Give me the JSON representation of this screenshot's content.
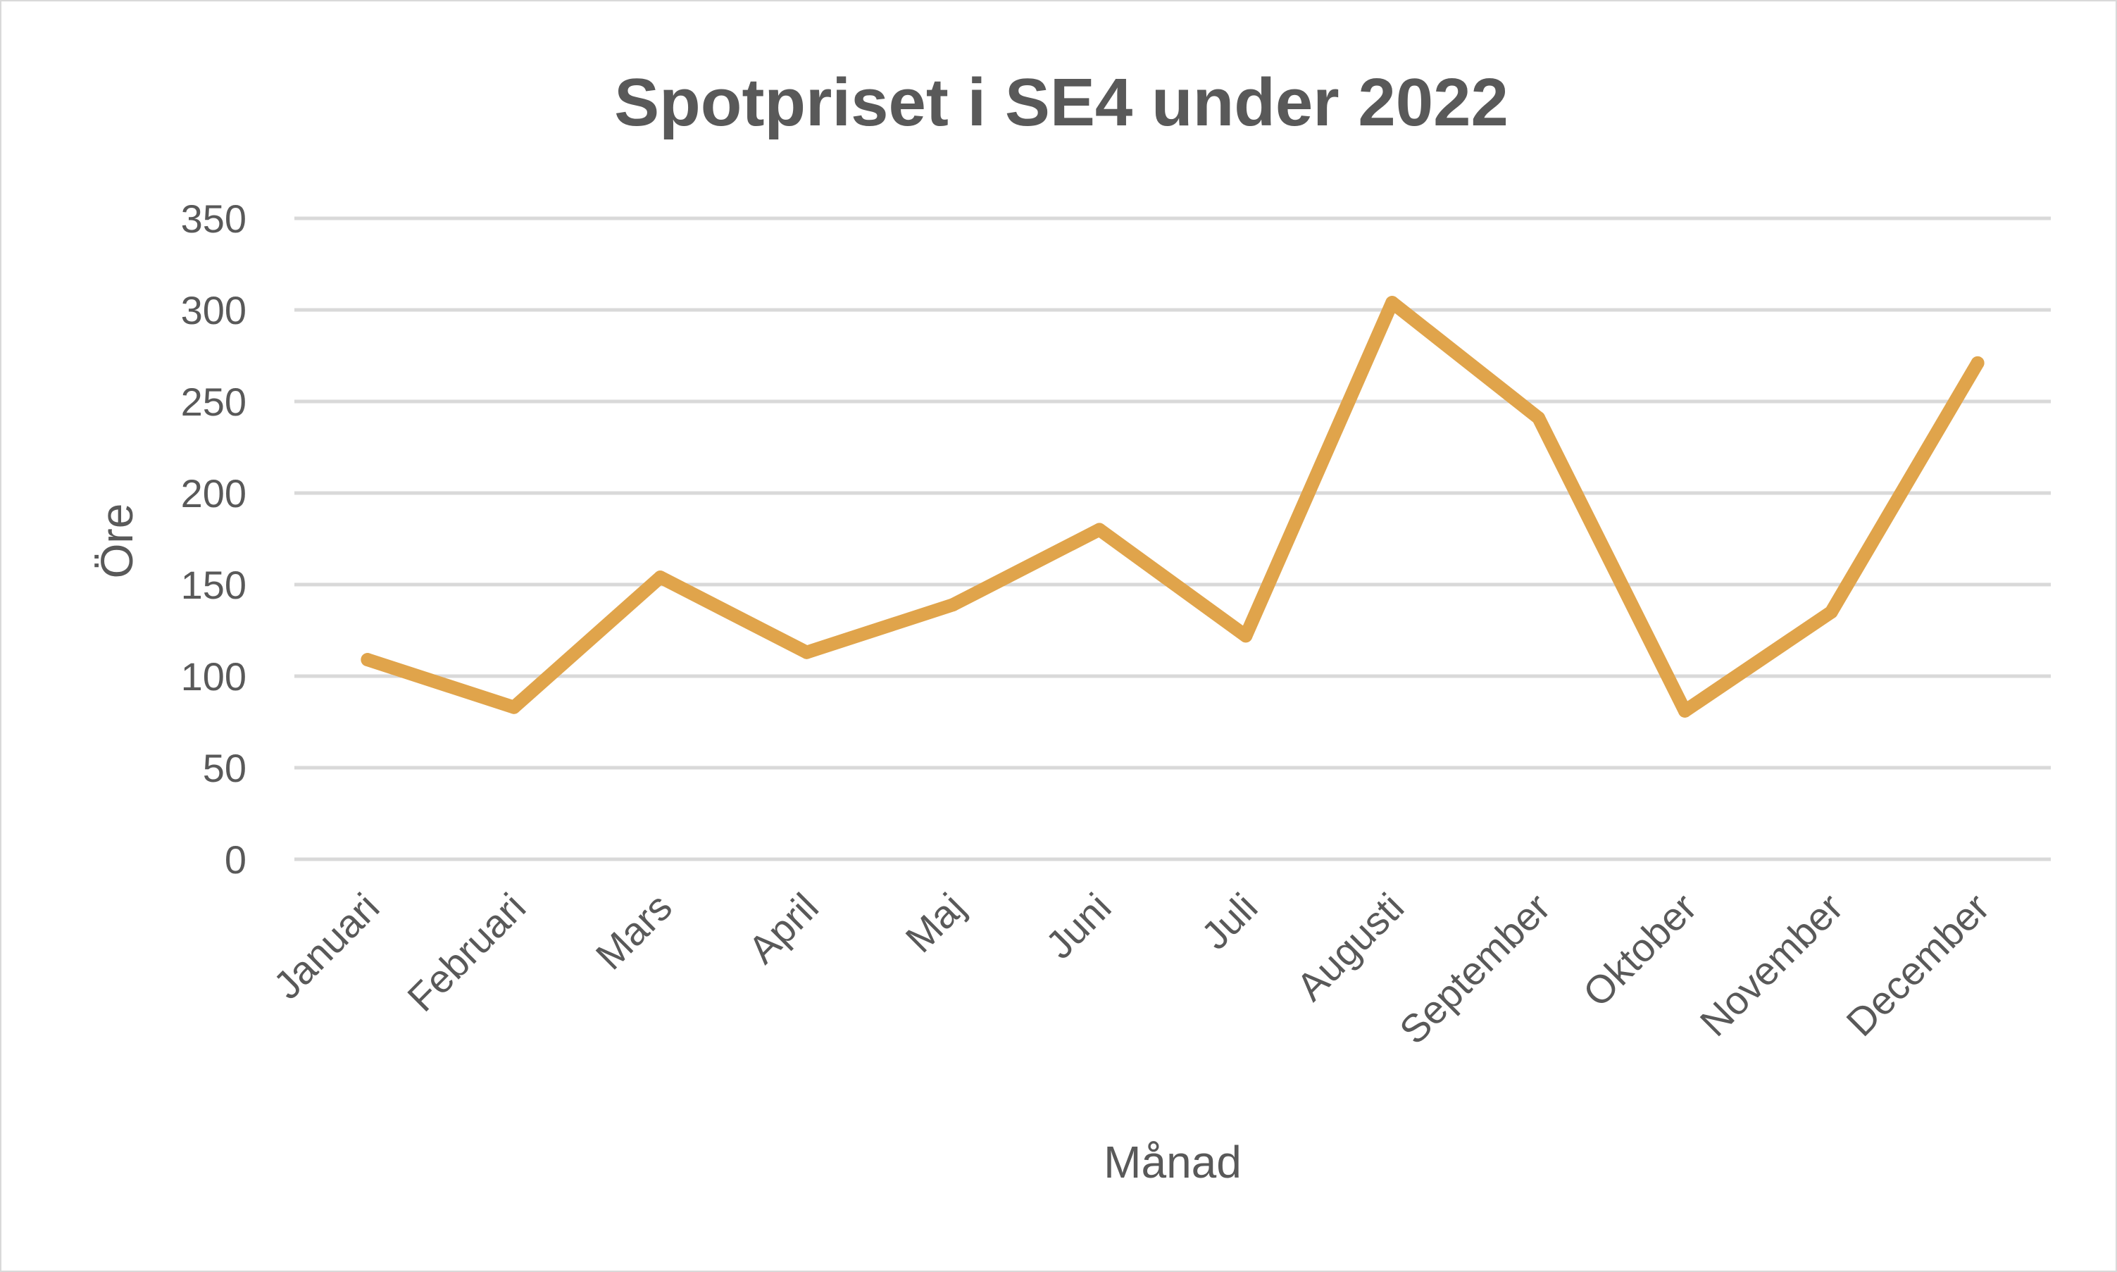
{
  "chart_data": {
    "type": "line",
    "title": "Spotpriset i SE4 under 2022",
    "xlabel": "Månad",
    "ylabel": "Öre",
    "categories": [
      "Januari",
      "Februari",
      "Mars",
      "April",
      "Maj",
      "Juni",
      "Juli",
      "Augusti",
      "September",
      "Oktober",
      "November",
      "December"
    ],
    "series": [
      {
        "values": [
          109,
          83,
          154,
          113,
          139,
          180,
          122,
          304,
          241,
          81,
          135,
          271
        ]
      }
    ],
    "ylim": [
      0,
      350
    ],
    "yticks": [
      0,
      50,
      100,
      150,
      200,
      250,
      300,
      350
    ],
    "grid": true,
    "legend": "none",
    "colors": {
      "line": "#e0a44b",
      "grid": "#d9d9d9",
      "text": "#595959"
    }
  }
}
